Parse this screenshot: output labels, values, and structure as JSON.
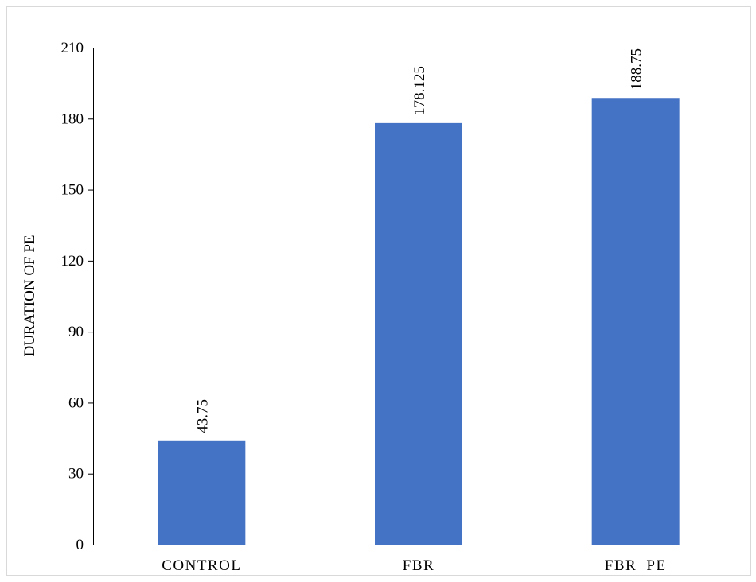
{
  "chart_data": {
    "type": "bar",
    "title": "",
    "xlabel": "",
    "ylabel": "DURATION OF PE",
    "categories": [
      "CONTROL",
      "FBR",
      "FBR+PE"
    ],
    "values": [
      43.75,
      178.125,
      188.75
    ],
    "value_labels": [
      "43.75",
      "178.125",
      "188.75"
    ],
    "ylim": [
      0,
      210
    ],
    "yticks": [
      0,
      30,
      60,
      90,
      120,
      150,
      180,
      210
    ],
    "grid": false,
    "legend": "none",
    "bar_color": "#4472C4"
  }
}
